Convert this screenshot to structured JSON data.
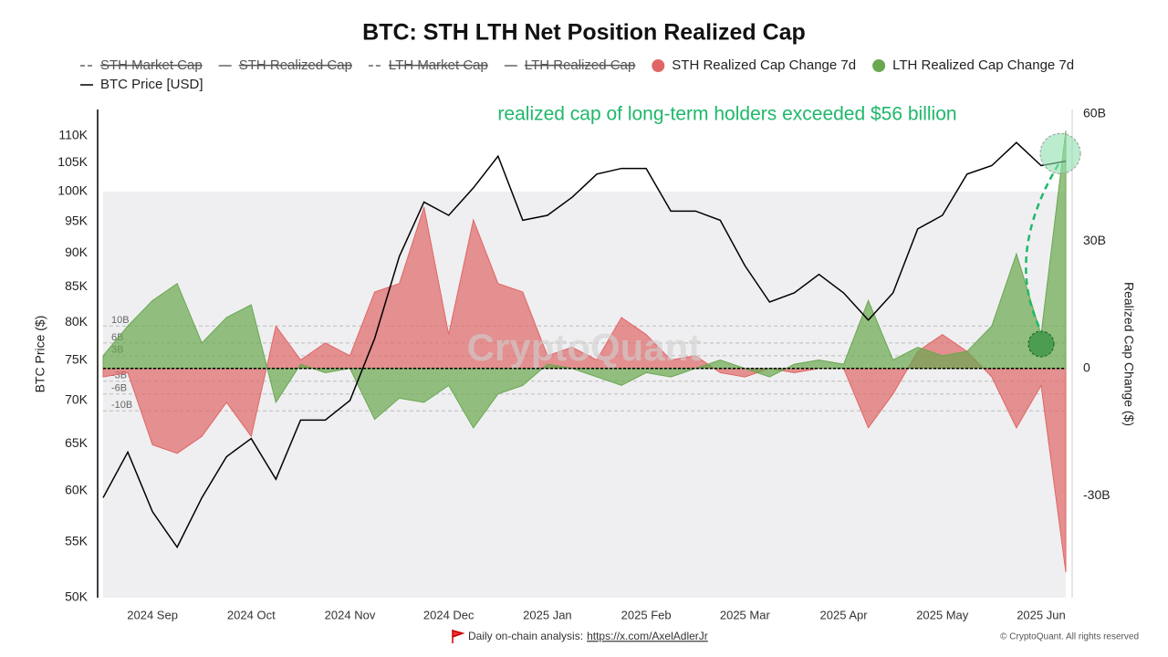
{
  "chart_data": {
    "type": "combo",
    "title": "BTC: STH LTH Net Position Realized Cap",
    "legend_inactive": [
      {
        "name": "STH Market Cap",
        "style": "dashed"
      },
      {
        "name": "STH Realized Cap",
        "style": "solid"
      },
      {
        "name": "LTH Market Cap",
        "style": "dashed"
      },
      {
        "name": "LTH Realized Cap",
        "style": "solid"
      }
    ],
    "categories": [
      null,
      null,
      "2024 Sep",
      null,
      null,
      null,
      "2024 Oct",
      null,
      null,
      null,
      "2024 Nov",
      null,
      null,
      null,
      "2024 Dec",
      null,
      null,
      null,
      "2025 Jan",
      null,
      null,
      null,
      "2025 Feb",
      null,
      null,
      null,
      "2025 Mar",
      null,
      null,
      null,
      "2025 Apr",
      null,
      null,
      null,
      "2025 May",
      null,
      null,
      null,
      "2025 Jun",
      null
    ],
    "series": [
      {
        "name": "STH Realized Cap Change 7d",
        "type": "area",
        "axis": "y2",
        "color": "#e06666",
        "values": [
          -2,
          -1,
          -18,
          -20,
          -16,
          -8,
          -16,
          10,
          2,
          6,
          3,
          18,
          20,
          38,
          8,
          35,
          20,
          18,
          3,
          5,
          2,
          12,
          8,
          2,
          3,
          -1,
          -2,
          0,
          -1,
          0,
          0,
          -14,
          -6,
          4,
          8,
          4,
          -2,
          -14,
          -4,
          -48
        ]
      },
      {
        "name": "LTH Realized Cap Change 7d",
        "type": "area",
        "axis": "y2",
        "color": "#6aa84f",
        "values": [
          3,
          10,
          16,
          20,
          6,
          12,
          15,
          -8,
          1,
          -1,
          0,
          -12,
          -7,
          -8,
          -4,
          -14,
          -6,
          -4,
          1,
          0,
          -2,
          -4,
          -1,
          -2,
          0,
          2,
          0,
          -2,
          1,
          2,
          1,
          16,
          2,
          5,
          3,
          4,
          10,
          27,
          8,
          56
        ]
      },
      {
        "name": "BTC Price [USD]",
        "type": "line",
        "color": "#000000",
        "values": [
          59300,
          64100,
          57900,
          54500,
          59300,
          63600,
          65600,
          61200,
          67700,
          67700,
          70000,
          77800,
          89500,
          98200,
          96000,
          100600,
          106200,
          95200,
          96000,
          99000,
          103000,
          104000,
          104000,
          96700,
          96700,
          95200,
          88100,
          82800,
          84100,
          86800,
          84100,
          80300,
          84100,
          93800,
          96000,
          103000,
          104500,
          108700,
          104500,
          105300
        ]
      }
    ],
    "y_label": "BTC Price ($)",
    "y2_label": "Realized Cap Change ($)",
    "yscale": "log",
    "ylim": [
      50000,
      115000
    ],
    "yticks": [
      {
        "value": 50000,
        "label": "50K"
      },
      {
        "value": 55000,
        "label": "55K"
      },
      {
        "value": 60000,
        "label": "60K"
      },
      {
        "value": 65000,
        "label": "65K"
      },
      {
        "value": 70000,
        "label": "70K"
      },
      {
        "value": 75000,
        "label": "75K"
      },
      {
        "value": 80000,
        "label": "80K"
      },
      {
        "value": 85000,
        "label": "85K"
      },
      {
        "value": 90000,
        "label": "90K"
      },
      {
        "value": 95000,
        "label": "95K"
      },
      {
        "value": 100000,
        "label": "100K"
      },
      {
        "value": 105000,
        "label": "105K"
      },
      {
        "value": 110000,
        "label": "110K"
      }
    ],
    "y2lim": [
      -54,
      61
    ],
    "y2ticks": [
      {
        "value": -30,
        "label": "-30B"
      },
      0,
      {
        "value": 30,
        "label": "30B"
      },
      {
        "value": 60,
        "label": "60B"
      }
    ],
    "reference_lines": [
      {
        "value": 10,
        "label": "10B"
      },
      {
        "value": 6,
        "label": "6B"
      },
      {
        "value": 3,
        "label": "3B"
      },
      {
        "value": -3,
        "label": "-3B"
      },
      {
        "value": -6,
        "label": "-6B"
      },
      {
        "value": -10,
        "label": "-10B"
      }
    ],
    "annotation": "realized cap of long-term holders exceeded $56 billion",
    "watermark": "CryptoQuant"
  },
  "footer": {
    "text": "Daily on-chain analysis:",
    "link": "https://x.com/AxelAdlerJr",
    "copyright": "© CryptoQuant. All rights reserved"
  }
}
